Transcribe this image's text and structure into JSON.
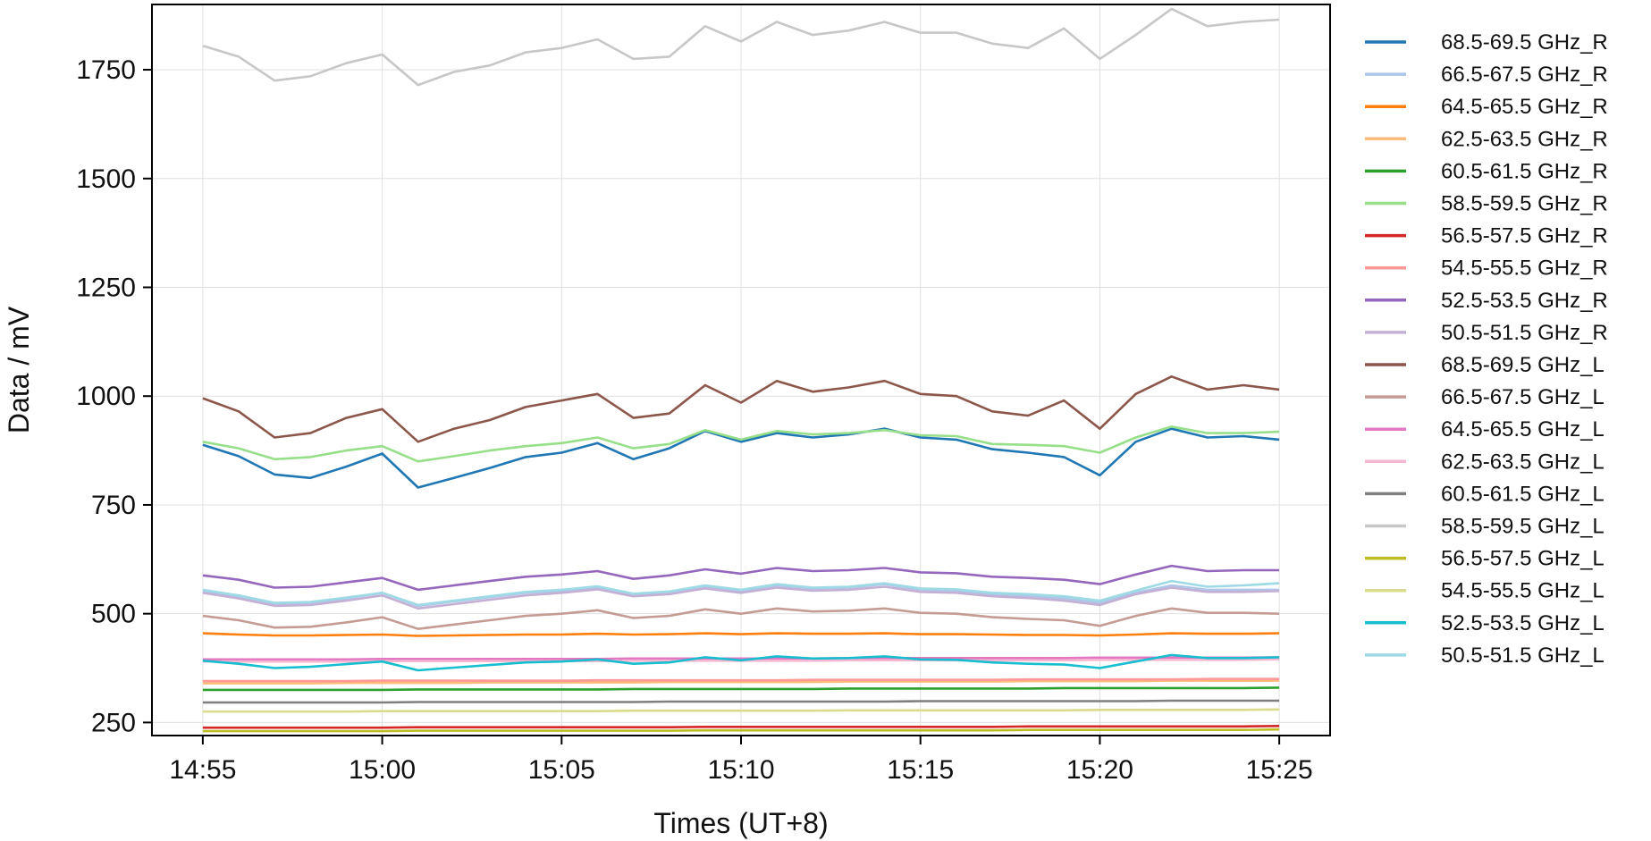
{
  "chart_data": {
    "type": "line",
    "xlabel": "Times (UT+8)",
    "ylabel": "Data / mV",
    "xlim": [
      "14:53:35",
      "15:26:25"
    ],
    "ylim": [
      220,
      1900
    ],
    "x_ticks": [
      "14:55",
      "15:00",
      "15:05",
      "15:10",
      "15:15",
      "15:20",
      "15:25"
    ],
    "y_ticks": [
      250,
      500,
      750,
      1000,
      1250,
      1500,
      1750
    ],
    "grid": true,
    "legend_position": "outside-right",
    "x": [
      "14:55",
      "14:56",
      "14:57",
      "14:58",
      "14:59",
      "15:00",
      "15:01",
      "15:02",
      "15:03",
      "15:04",
      "15:05",
      "15:06",
      "15:07",
      "15:08",
      "15:09",
      "15:10",
      "15:11",
      "15:12",
      "15:13",
      "15:14",
      "15:15",
      "15:16",
      "15:17",
      "15:18",
      "15:19",
      "15:20",
      "15:21",
      "15:22",
      "15:23",
      "15:24",
      "15:25"
    ],
    "series": [
      {
        "name": "68.5-69.5 GHz_R",
        "color": "#1f77b4",
        "values": [
          888,
          862,
          820,
          812,
          838,
          868,
          790,
          812,
          835,
          860,
          870,
          892,
          855,
          880,
          920,
          895,
          915,
          905,
          912,
          925,
          905,
          900,
          878,
          870,
          860,
          818,
          895,
          925,
          905,
          908,
          900
        ]
      },
      {
        "name": "66.5-67.5 GHz_R",
        "color": "#aec7e8",
        "values": [
          552,
          540,
          522,
          525,
          535,
          548,
          518,
          528,
          538,
          548,
          552,
          560,
          543,
          548,
          562,
          552,
          565,
          558,
          560,
          568,
          555,
          553,
          545,
          540,
          535,
          525,
          548,
          565,
          555,
          555,
          555
        ]
      },
      {
        "name": "64.5-65.5 GHz_R",
        "color": "#ff7f0e",
        "values": [
          455,
          452,
          450,
          450,
          451,
          452,
          449,
          450,
          451,
          452,
          452,
          454,
          452,
          453,
          455,
          453,
          455,
          454,
          454,
          455,
          453,
          453,
          452,
          451,
          451,
          450,
          452,
          455,
          454,
          454,
          455
        ]
      },
      {
        "name": "62.5-63.5 GHz_R",
        "color": "#ffbb78",
        "values": [
          340,
          340,
          340,
          340,
          341,
          341,
          341,
          341,
          342,
          342,
          342,
          342,
          342,
          343,
          343,
          343,
          343,
          343,
          344,
          344,
          344,
          344,
          344,
          345,
          345,
          345,
          345,
          346,
          346,
          346,
          346
        ]
      },
      {
        "name": "60.5-61.5 GHz_R",
        "color": "#2ca02c",
        "values": [
          325,
          325,
          325,
          325,
          325,
          325,
          326,
          326,
          326,
          326,
          326,
          326,
          327,
          327,
          327,
          327,
          327,
          327,
          328,
          328,
          328,
          328,
          328,
          328,
          329,
          329,
          329,
          329,
          329,
          329,
          330
        ]
      },
      {
        "name": "58.5-59.5 GHz_R",
        "color": "#98df8a",
        "values": [
          895,
          880,
          855,
          860,
          875,
          885,
          850,
          862,
          875,
          885,
          892,
          905,
          880,
          890,
          922,
          900,
          920,
          912,
          915,
          922,
          910,
          908,
          890,
          888,
          885,
          870,
          905,
          930,
          915,
          915,
          918
        ]
      },
      {
        "name": "56.5-57.5 GHz_R",
        "color": "#d62728",
        "values": [
          238,
          238,
          238,
          238,
          238,
          238,
          239,
          239,
          239,
          239,
          239,
          239,
          239,
          239,
          240,
          240,
          240,
          240,
          240,
          240,
          240,
          240,
          240,
          241,
          241,
          241,
          241,
          241,
          241,
          241,
          242
        ]
      },
      {
        "name": "54.5-55.5 GHz_R",
        "color": "#ff9896",
        "values": [
          345,
          345,
          345,
          345,
          345,
          346,
          346,
          346,
          346,
          346,
          346,
          347,
          347,
          347,
          347,
          347,
          347,
          348,
          348,
          348,
          348,
          348,
          348,
          349,
          349,
          349,
          349,
          349,
          350,
          350,
          350
        ]
      },
      {
        "name": "52.5-53.5 GHz_R",
        "color": "#9467bd",
        "values": [
          588,
          578,
          560,
          562,
          572,
          582,
          555,
          565,
          575,
          585,
          590,
          598,
          580,
          588,
          602,
          592,
          605,
          598,
          600,
          605,
          595,
          593,
          585,
          582,
          578,
          568,
          590,
          610,
          598,
          600,
          600
        ]
      },
      {
        "name": "50.5-51.5 GHz_R",
        "color": "#c5b0d5",
        "values": [
          548,
          535,
          518,
          520,
          530,
          542,
          512,
          522,
          532,
          542,
          548,
          556,
          540,
          545,
          558,
          548,
          560,
          553,
          555,
          562,
          550,
          548,
          540,
          536,
          530,
          520,
          545,
          560,
          550,
          550,
          552
        ]
      },
      {
        "name": "68.5-69.5 GHz_L",
        "color": "#8c564b",
        "values": [
          995,
          965,
          905,
          915,
          950,
          970,
          895,
          925,
          945,
          975,
          990,
          1005,
          950,
          960,
          1025,
          985,
          1035,
          1010,
          1020,
          1035,
          1005,
          1000,
          965,
          955,
          990,
          925,
          1005,
          1045,
          1015,
          1025,
          1015
        ]
      },
      {
        "name": "66.5-67.5 GHz_L",
        "color": "#c49c94",
        "values": [
          495,
          485,
          468,
          470,
          480,
          492,
          465,
          475,
          485,
          495,
          500,
          508,
          490,
          495,
          510,
          500,
          512,
          505,
          507,
          512,
          502,
          500,
          492,
          488,
          485,
          472,
          495,
          512,
          502,
          502,
          500
        ]
      },
      {
        "name": "64.5-65.5 GHz_L",
        "color": "#e377c2",
        "values": [
          395,
          395,
          395,
          395,
          395,
          396,
          396,
          396,
          396,
          396,
          396,
          396,
          397,
          397,
          397,
          397,
          397,
          397,
          398,
          398,
          398,
          398,
          398,
          398,
          398,
          399,
          399,
          399,
          399,
          399,
          400
        ]
      },
      {
        "name": "62.5-63.5 GHz_L",
        "color": "#f7b6d2",
        "values": [
          390,
          390,
          390,
          390,
          390,
          391,
          391,
          391,
          391,
          391,
          391,
          391,
          392,
          392,
          392,
          392,
          392,
          392,
          393,
          393,
          393,
          393,
          393,
          393,
          393,
          394,
          394,
          394,
          394,
          394,
          395
        ]
      },
      {
        "name": "60.5-61.5 GHz_L",
        "color": "#7f7f7f",
        "values": [
          296,
          296,
          296,
          296,
          296,
          296,
          297,
          297,
          297,
          297,
          297,
          297,
          297,
          298,
          298,
          298,
          298,
          298,
          298,
          298,
          299,
          299,
          299,
          299,
          299,
          299,
          299,
          300,
          300,
          300,
          300
        ]
      },
      {
        "name": "58.5-59.5 GHz_L",
        "color": "#c7c7c7",
        "values": [
          1805,
          1780,
          1725,
          1735,
          1765,
          1785,
          1715,
          1745,
          1760,
          1790,
          1800,
          1820,
          1775,
          1780,
          1850,
          1815,
          1860,
          1830,
          1840,
          1860,
          1835,
          1835,
          1810,
          1800,
          1845,
          1775,
          1830,
          1890,
          1850,
          1860,
          1865
        ]
      },
      {
        "name": "56.5-57.5 GHz_L",
        "color": "#bcbd22",
        "values": [
          230,
          230,
          230,
          230,
          230,
          230,
          231,
          231,
          231,
          231,
          231,
          231,
          231,
          231,
          232,
          232,
          232,
          232,
          232,
          232,
          232,
          232,
          232,
          233,
          233,
          233,
          233,
          233,
          233,
          233,
          234
        ]
      },
      {
        "name": "54.5-55.5 GHz_L",
        "color": "#dbdb8d",
        "values": [
          275,
          275,
          275,
          275,
          275,
          276,
          276,
          276,
          276,
          276,
          276,
          276,
          277,
          277,
          277,
          277,
          277,
          277,
          278,
          278,
          278,
          278,
          278,
          278,
          278,
          279,
          279,
          279,
          279,
          279,
          280
        ]
      },
      {
        "name": "52.5-53.5 GHz_L",
        "color": "#17becf",
        "values": [
          392,
          385,
          375,
          378,
          384,
          390,
          370,
          376,
          382,
          388,
          390,
          395,
          385,
          388,
          400,
          393,
          402,
          397,
          398,
          402,
          395,
          394,
          388,
          385,
          383,
          375,
          390,
          405,
          398,
          398,
          400
        ]
      },
      {
        "name": "50.5-51.5 GHz_L",
        "color": "#9edae5",
        "values": [
          555,
          542,
          525,
          527,
          537,
          548,
          520,
          530,
          540,
          550,
          555,
          563,
          546,
          551,
          565,
          555,
          568,
          560,
          562,
          570,
          558,
          556,
          548,
          545,
          540,
          530,
          553,
          575,
          562,
          565,
          570
        ]
      }
    ]
  }
}
